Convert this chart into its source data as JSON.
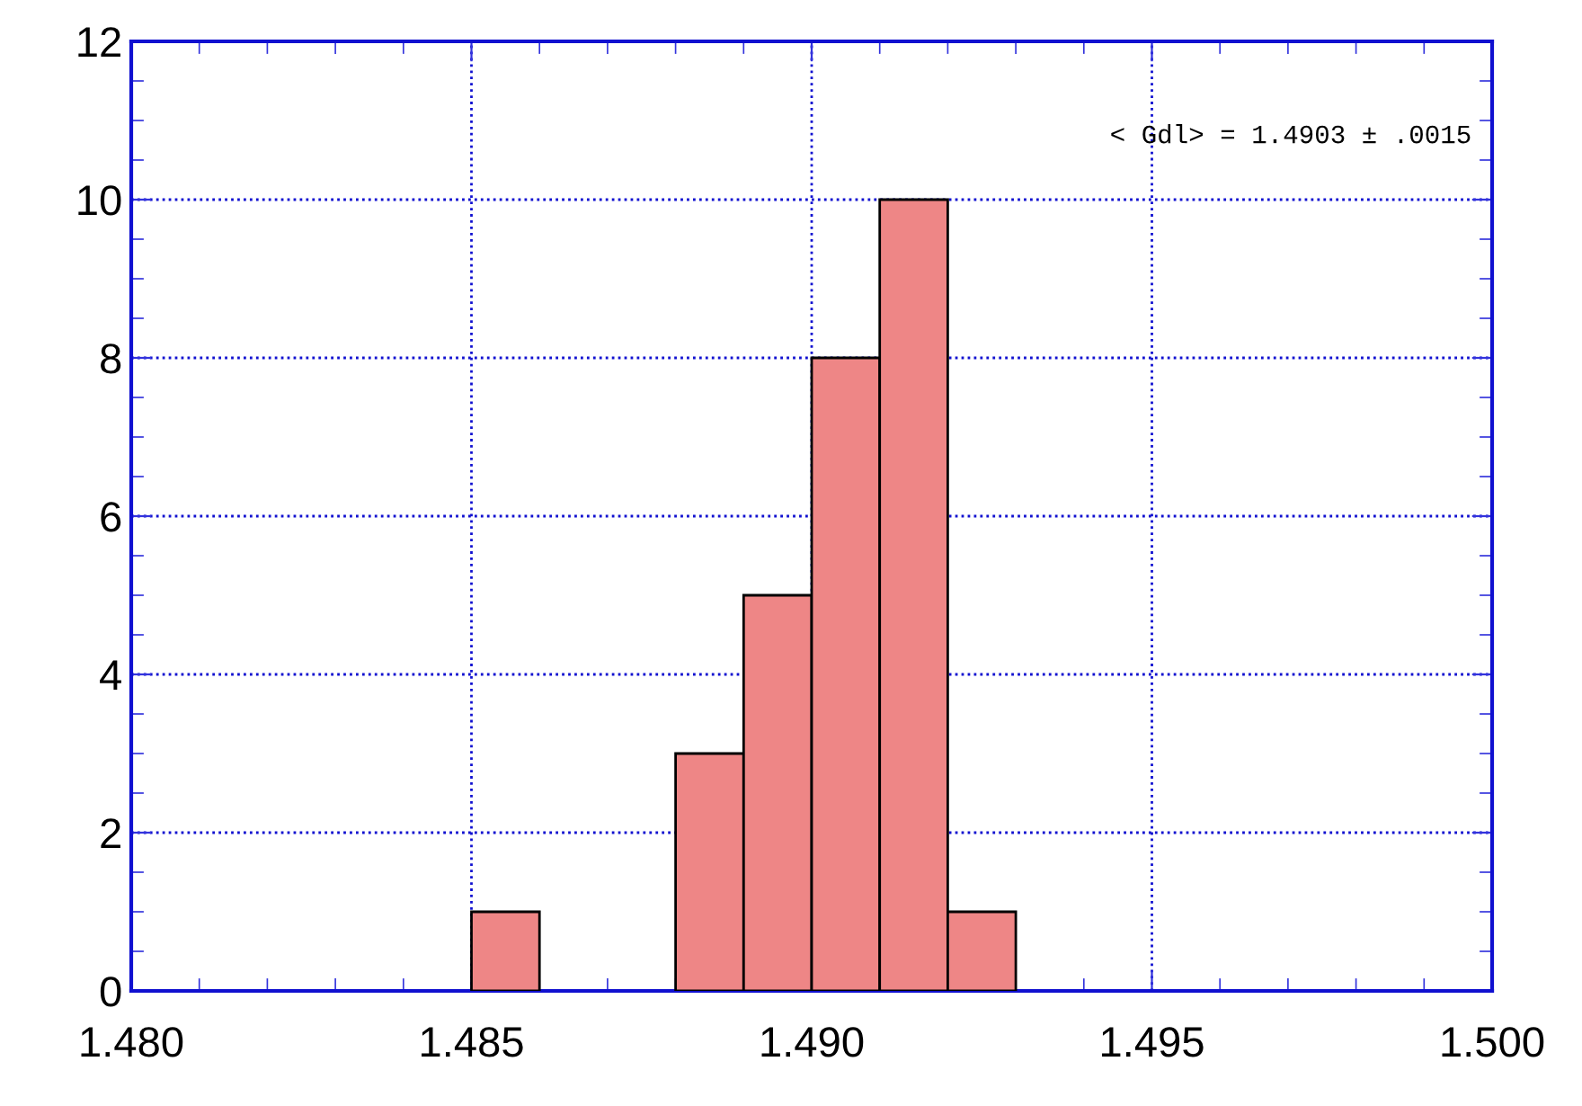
{
  "chart_data": {
    "type": "histogram",
    "bins": [
      1.485,
      1.486,
      1.487,
      1.488,
      1.489,
      1.49,
      1.491,
      1.492,
      1.493
    ],
    "values": [
      1,
      0,
      0,
      3,
      5,
      8,
      10,
      1
    ],
    "color": "#ee8686",
    "xlim": [
      1.48,
      1.5
    ],
    "xticks": [
      {
        "value": 1.48,
        "label": "1.480"
      },
      {
        "value": 1.485,
        "label": "1.485"
      },
      {
        "value": 1.49,
        "label": "1.490"
      },
      {
        "value": 1.495,
        "label": "1.495"
      },
      {
        "value": 1.5,
        "label": "1.500"
      }
    ],
    "ylim": [
      0,
      12
    ],
    "yticks": [
      0,
      2,
      4,
      6,
      8,
      10,
      12
    ],
    "grid": true,
    "annotations": [
      "< Gdl> = 1.4903 ± .0015"
    ]
  }
}
